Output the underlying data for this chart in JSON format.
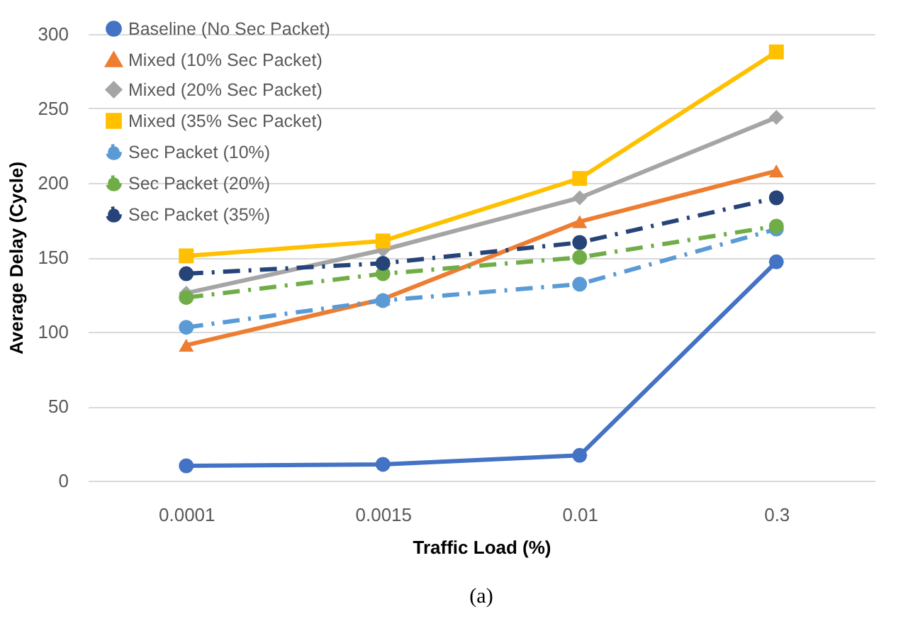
{
  "chart_data": {
    "type": "line",
    "xlabel": "Traffic  Load (%)",
    "ylabel": "Average Delay (Cycle)",
    "categories": [
      "0.0001",
      "0.0015",
      "0.01",
      "0.3"
    ],
    "series": [
      {
        "name": "Baseline (No Sec Packet)",
        "color": "#4472c4",
        "marker": "circle",
        "line_style": "solid",
        "values": [
          10,
          11,
          17,
          147
        ]
      },
      {
        "name": "Mixed (10% Sec Packet)",
        "color": "#ed7d31",
        "marker": "triangle",
        "line_style": "solid",
        "values": [
          91,
          122,
          174,
          208
        ]
      },
      {
        "name": "Mixed (20% Sec Packet)",
        "color": "#a5a5a5",
        "marker": "diamond",
        "line_style": "solid",
        "values": [
          126,
          155,
          190,
          244
        ]
      },
      {
        "name": "Mixed (35% Sec Packet)",
        "color": "#ffc000",
        "marker": "square",
        "line_style": "solid",
        "values": [
          151,
          161,
          203,
          288
        ]
      },
      {
        "name": "Sec Packet (10%)",
        "color": "#5b9bd5",
        "marker": "circle",
        "line_style": "dashed",
        "values": [
          103,
          121,
          132,
          169
        ]
      },
      {
        "name": "Sec Packet (20%)",
        "color": "#70ad47",
        "marker": "circle",
        "line_style": "dashed",
        "values": [
          123,
          139,
          150,
          171
        ]
      },
      {
        "name": "Sec Packet (35%)",
        "color": "#264478",
        "marker": "circle",
        "line_style": "dashed",
        "values": [
          139,
          146,
          160,
          190
        ]
      }
    ],
    "ylim": [
      0,
      300
    ],
    "yticks": [
      0,
      50,
      100,
      150,
      200,
      250,
      300
    ],
    "grid": "y",
    "legend": "top left",
    "annotations": [
      "(a)"
    ]
  }
}
